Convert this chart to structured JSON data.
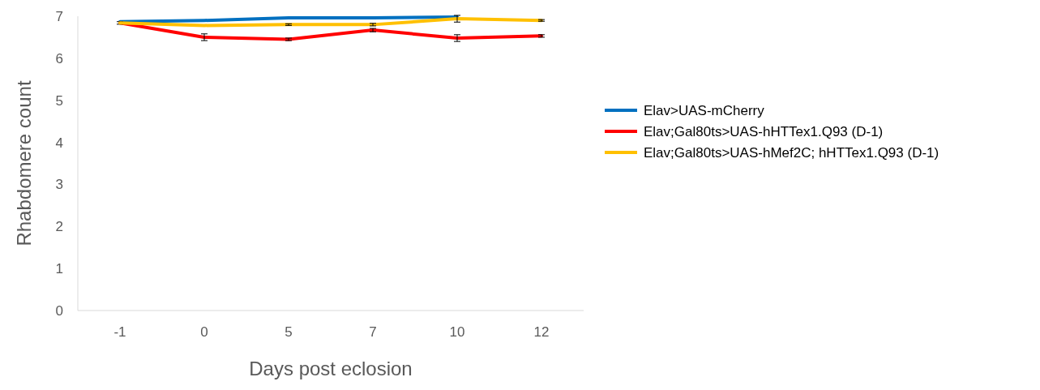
{
  "chart_data": {
    "type": "line",
    "xlabel": "Days post eclosion",
    "ylabel": "Rhabdomere count",
    "categories": [
      "-1",
      "0",
      "5",
      "7",
      "10",
      "12"
    ],
    "ylim": [
      0,
      7
    ],
    "yticks": [
      0,
      1,
      2,
      3,
      4,
      5,
      6,
      7
    ],
    "grid": false,
    "legend": "right",
    "marker": "none",
    "line_style": "solid",
    "series": [
      {
        "name": "Elav>UAS-mCherry",
        "color": "#0070c0",
        "values": [
          6.87,
          6.9,
          6.96,
          6.96,
          6.98,
          null
        ]
      },
      {
        "name": "Elav;Gal80ts>UAS-hHTTex1.Q93 (D-1)",
        "color": "#ff0000",
        "values": [
          6.84,
          6.5,
          6.45,
          6.67,
          6.48,
          6.53
        ],
        "errors": [
          0.03,
          0.08,
          0.03,
          0.04,
          0.08,
          0.03
        ]
      },
      {
        "name": "Elav;Gal80ts>UAS-hMef2C; hHTTex1.Q93 (D-1)",
        "color": "#ffc000",
        "values": [
          6.84,
          6.78,
          6.8,
          6.8,
          6.94,
          6.9
        ],
        "errors": [
          null,
          null,
          0.02,
          0.03,
          0.08,
          0.02
        ]
      }
    ]
  }
}
